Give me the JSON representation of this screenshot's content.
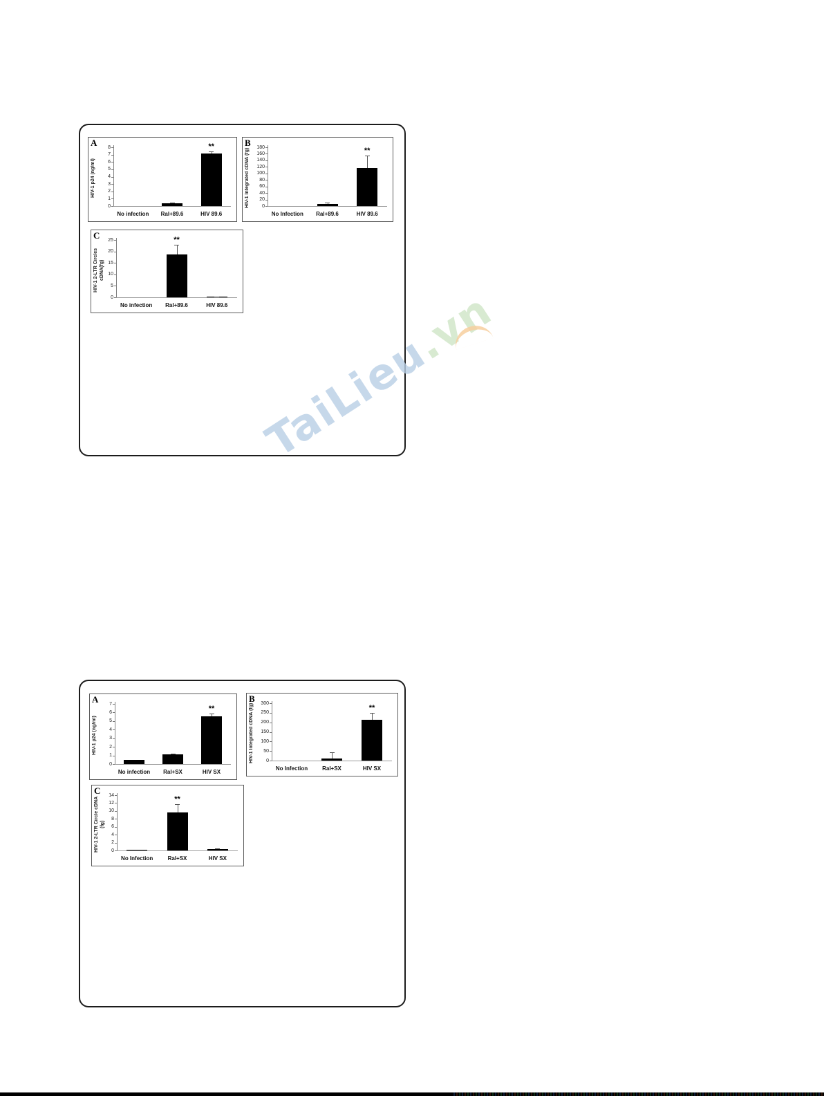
{
  "watermark": {
    "text_main": "TaiLieu",
    "text_suffix": ".vn",
    "main_color": "#b9cfe6",
    "suffix_color": "#cfe5c6",
    "swoosh_color": "#f7cf9f"
  },
  "chart_data": [
    {
      "figure": 1,
      "panel_letter": "A",
      "type": "bar",
      "ylabel": "HIV-1 p24 (ng/ml)",
      "ylim": [
        0,
        8
      ],
      "ystep": 1,
      "categories": [
        "No infection",
        "Ral+89.6",
        "HIV 89.6"
      ],
      "values": [
        0,
        0.35,
        7.2
      ],
      "errors": [
        0,
        0.15,
        0.25
      ],
      "significance": [
        "",
        "",
        "**"
      ]
    },
    {
      "figure": 1,
      "panel_letter": "B",
      "type": "bar",
      "ylabel": "HIV-1 Integrated cDNA (fg)",
      "ylim": [
        0,
        180
      ],
      "ystep": 20,
      "categories": [
        "No Infection",
        "Ral+89.6",
        "HIV 89.6"
      ],
      "values": [
        0,
        7,
        117
      ],
      "errors": [
        0,
        4,
        38
      ],
      "significance": [
        "",
        "",
        "**"
      ]
    },
    {
      "figure": 1,
      "panel_letter": "C",
      "type": "bar",
      "ylabel": "HIV-1 2-LTR Circles cDNA(fg)",
      "ylim": [
        0,
        25
      ],
      "ystep": 5,
      "categories": [
        "No infection",
        "Ral+89.6",
        "HIV 89.6"
      ],
      "values": [
        0,
        18.8,
        0.3
      ],
      "errors": [
        0,
        4.2,
        0.15
      ],
      "significance": [
        "",
        "**",
        ""
      ]
    },
    {
      "figure": 2,
      "panel_letter": "A",
      "type": "bar",
      "ylabel": "HIV-1 p24 (ng/ml)",
      "ylim": [
        0,
        7
      ],
      "ystep": 1,
      "categories": [
        "No infection",
        "Ral+SX",
        "HIV SX"
      ],
      "values": [
        0.45,
        1.1,
        5.55
      ],
      "errors": [
        0,
        0.1,
        0.35
      ],
      "significance": [
        "",
        "",
        "**"
      ]
    },
    {
      "figure": 2,
      "panel_letter": "B",
      "type": "bar",
      "ylabel": "HIV-1 Integrated cDNA (fg)",
      "ylim": [
        0,
        300
      ],
      "ystep": 50,
      "categories": [
        "No Infection",
        "Ral+SX",
        "HIV SX"
      ],
      "values": [
        0,
        10,
        215
      ],
      "errors": [
        0,
        35,
        35
      ],
      "significance": [
        "",
        "",
        "**"
      ]
    },
    {
      "figure": 2,
      "panel_letter": "C",
      "type": "bar",
      "ylabel": "HIV-1 2-LTR Circle cDNA (fg)",
      "ylim": [
        0,
        14
      ],
      "ystep": 2,
      "categories": [
        "No Infection",
        "Ral+SX",
        "HIV SX"
      ],
      "values": [
        0.1,
        9.6,
        0.35
      ],
      "errors": [
        0,
        2.1,
        0.15
      ],
      "significance": [
        "",
        "**",
        ""
      ]
    }
  ]
}
